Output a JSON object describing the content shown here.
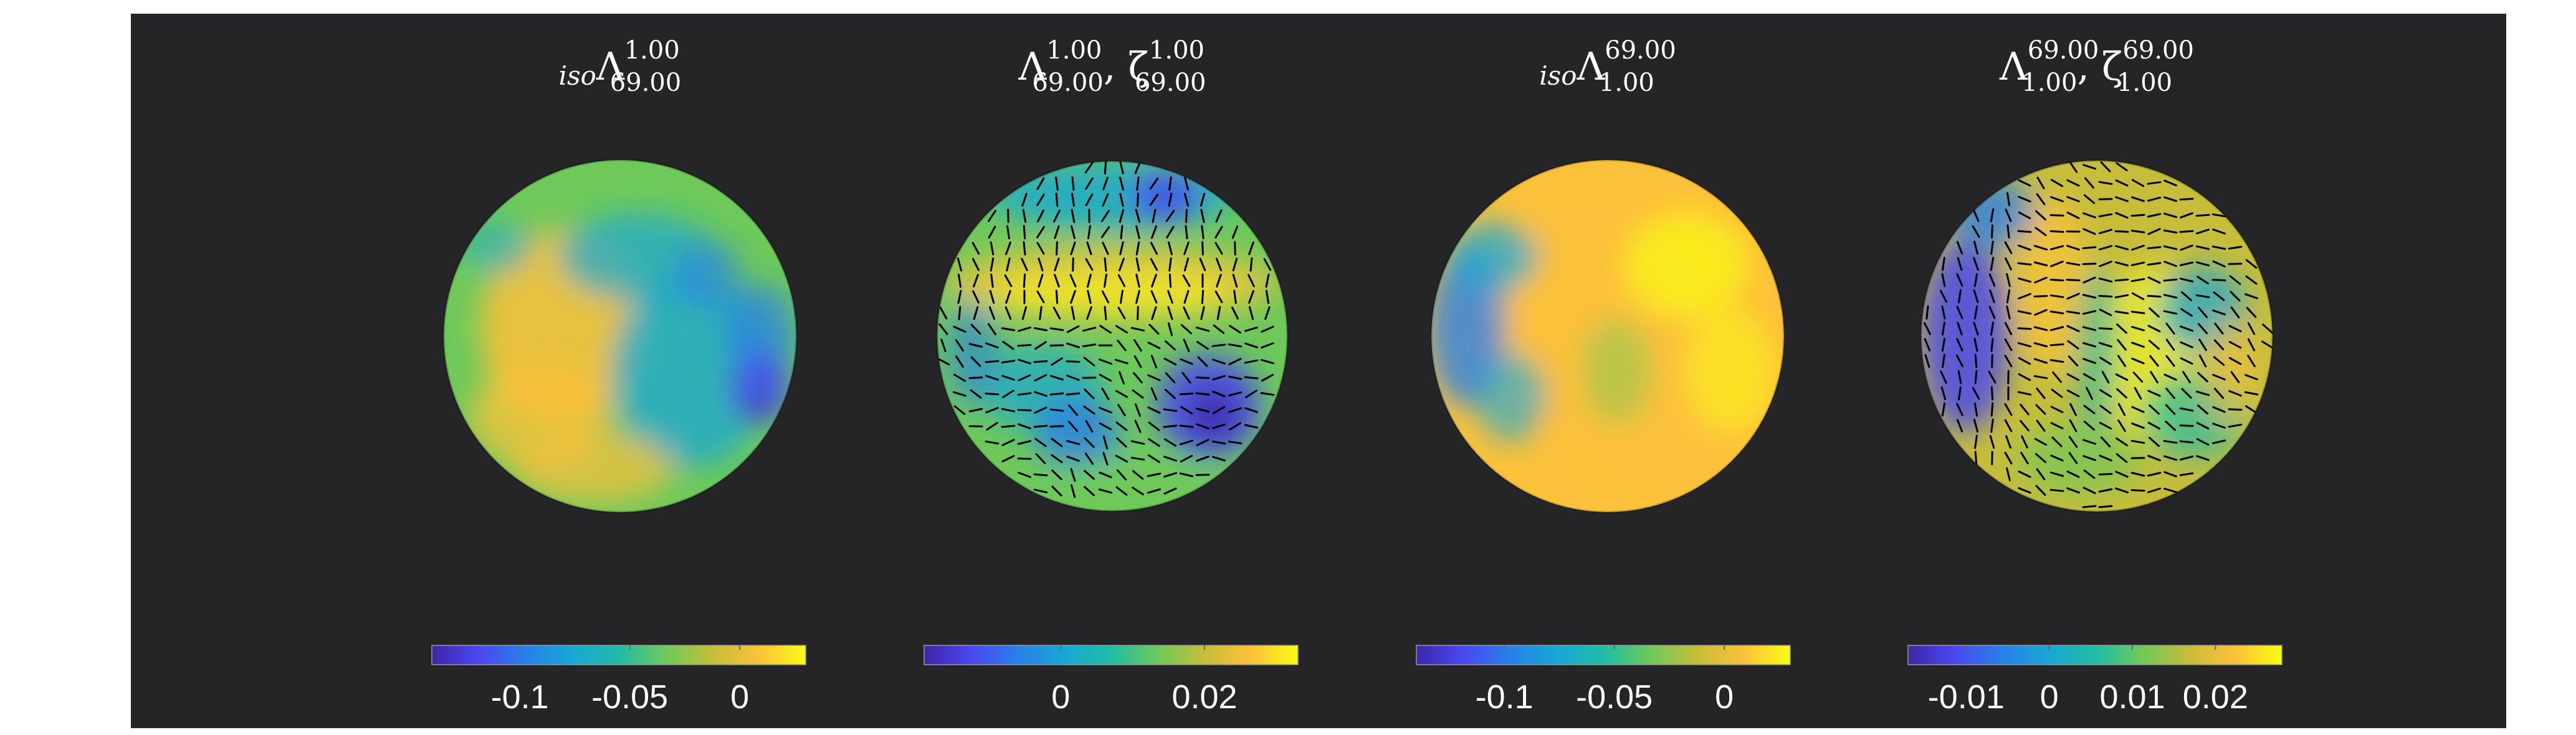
{
  "figure": {
    "background": "#252528",
    "page_background": "#ffffff",
    "colormap": [
      "#3e26a8",
      "#4a48f0",
      "#2a7fe8",
      "#18a7d4",
      "#1fbca6",
      "#6ec95a",
      "#c6bd3b",
      "#fcc13a",
      "#f9fb15"
    ]
  },
  "chart_data": [
    {
      "type": "heatmap",
      "projection": "orthographic-sphere",
      "title": {
        "pre": "iso",
        "base": "Λ",
        "sup": "1.00",
        "sub": "69.00"
      },
      "colorbar": {
        "range": [
          -0.14,
          0.03
        ],
        "ticks": [
          -0.1,
          -0.05,
          0
        ],
        "tick_labels": [
          "-0.1",
          "-0.05",
          "0"
        ]
      },
      "orientation_overlay": false,
      "field_note": "mostly green/yellow, bluish band on right half, dark blue spot lower right"
    },
    {
      "type": "heatmap",
      "projection": "orthographic-sphere",
      "title": {
        "base": "Λ",
        "sup": "1.00",
        "sub": "69.00",
        "base2": "ζ",
        "sup2": "1.00",
        "sub2": "69.00"
      },
      "colorbar": {
        "range": [
          -0.019,
          0.033
        ],
        "ticks": [
          0,
          0.02
        ],
        "tick_labels": [
          "0",
          "0.02"
        ]
      },
      "orientation_overlay": true,
      "field_note": "yellow equatorial band, blue lower patches, dark blue lower right"
    },
    {
      "type": "heatmap",
      "projection": "orthographic-sphere",
      "title": {
        "pre": "iso",
        "base": "Λ",
        "sup": "69.00",
        "sub": "1.00"
      },
      "colorbar": {
        "range": [
          -0.14,
          0.03
        ],
        "ticks": [
          -0.1,
          -0.05,
          0
        ],
        "tick_labels": [
          "-0.1",
          "-0.05",
          "0"
        ]
      },
      "orientation_overlay": false,
      "field_note": "mostly yellow/orange, blue region on left edge"
    },
    {
      "type": "heatmap",
      "projection": "orthographic-sphere",
      "title": {
        "base": "Λ",
        "sup": "69.00",
        "sub": "1.00",
        "base2": "ζ",
        "sup2": "69.00",
        "sub2": "1.00"
      },
      "colorbar": {
        "range": [
          -0.017,
          0.028
        ],
        "ticks": [
          -0.01,
          0,
          0.01,
          0.02
        ],
        "tick_labels": [
          "-0.01",
          "0",
          "0.01",
          "0.02"
        ]
      },
      "orientation_overlay": true,
      "field_note": "blue left crescent, yellow diagonal bands, green/blue patches right"
    }
  ]
}
